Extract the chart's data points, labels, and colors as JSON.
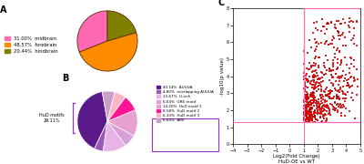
{
  "pie_A": {
    "values": [
      31.0,
      48.57,
      20.44
    ],
    "labels": [
      "midbrain",
      "forebrain",
      "hindbrain"
    ],
    "colors": [
      "#FF69B4",
      "#FF8C00",
      "#808000"
    ],
    "pct_labels": [
      "31.00%",
      "48.57%",
      "20.44%"
    ]
  },
  "pie_B": {
    "values": [
      40.14,
      4.8,
      12.67,
      6.64,
      14.2,
      8.58,
      6.33,
      6.64
    ],
    "labels": [
      "40.14%  AUUUA",
      "4.80%  overlapping AUUUA",
      "12.67%  U-rich",
      "6.64%  GRE motif",
      "14.20%  HuD motif 1",
      "8.58%  HuD motif 2",
      "6.33%  HuD motif 3",
      "6.64%  ARE"
    ],
    "colors": [
      "#5B1A8B",
      "#9B59B6",
      "#E8B4E8",
      "#D8A0D8",
      "#E8A0D0",
      "#FF1493",
      "#FFB6C1",
      "#C8A0C8"
    ],
    "hud_motifs_label": "HuD motifs\n29.11%"
  },
  "volcano": {
    "xlabel": "Log2(Fold Change)",
    "xlabel2": "HuD-OE vs WT",
    "ylabel": "-log10(p value)",
    "panel_label": "C",
    "vline": 1.0,
    "hline": 1.3,
    "box_color": "#FF69B4",
    "sig_color": "#CC0000",
    "nonsig_color": "#B0B0B0",
    "xlim": [
      -4,
      5
    ],
    "ylim": [
      0,
      8
    ]
  }
}
